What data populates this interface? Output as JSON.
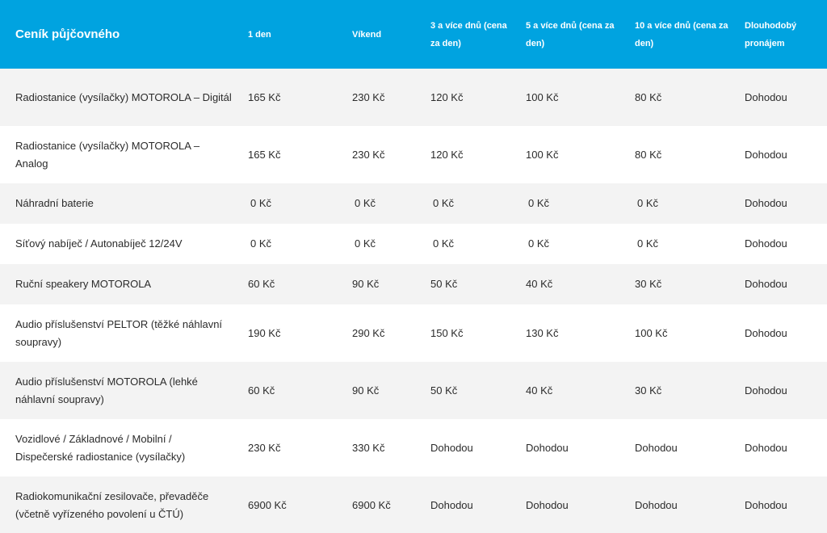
{
  "header": {
    "title": "Ceník půjčovného",
    "columns": [
      "1 den",
      "Víkend",
      "3 a více dnů (cena za den)",
      "5 a více dnů (cena za den)",
      "10 a více dnů (cena za den)",
      "Dlouhodobý pronájem"
    ]
  },
  "rows": [
    {
      "item": "Radiostanice (vysílačky) MOTOROLA – Digitál",
      "prices": [
        "165 Kč",
        "230 Kč",
        "120 Kč",
        "100 Kč",
        "80 Kč",
        "Dohodou"
      ]
    },
    {
      "item": "Radiostanice (vysílačky) MOTOROLA – Analog",
      "prices": [
        "165 Kč",
        "230 Kč",
        "120 Kč",
        "100 Kč",
        "80 Kč",
        "Dohodou"
      ]
    },
    {
      "item": "Náhradní baterie",
      "prices": [
        "0 Kč",
        "0 Kč",
        "0 Kč",
        "0 Kč",
        "0 Kč",
        "Dohodou"
      ]
    },
    {
      "item": "Síťový nabíječ / Autonabíječ 12/24V",
      "prices": [
        "0 Kč",
        "0 Kč",
        "0 Kč",
        "0 Kč",
        "0 Kč",
        "Dohodou"
      ]
    },
    {
      "item": "Ruční speakery MOTOROLA",
      "prices": [
        "60 Kč",
        "90 Kč",
        "50 Kč",
        "40 Kč",
        "30 Kč",
        "Dohodou"
      ]
    },
    {
      "item": "Audio příslušenství PELTOR (těžké náhlavní soupravy)",
      "prices": [
        "190 Kč",
        "290 Kč",
        "150 Kč",
        "130 Kč",
        "100 Kč",
        "Dohodou"
      ]
    },
    {
      "item": "Audio příslušenství MOTOROLA (lehké náhlavní soupravy)",
      "prices": [
        "60 Kč",
        "90 Kč",
        "50 Kč",
        "40 Kč",
        "30 Kč",
        "Dohodou"
      ]
    },
    {
      "item": "Vozidlové / Základnové / Mobilní / Dispečerské radiostanice (vysílačky)",
      "prices": [
        "230 Kč",
        "330 Kč",
        "Dohodou",
        "Dohodou",
        "Dohodou",
        "Dohodou"
      ]
    },
    {
      "item": "Radiokomunikační zesilovače, převaděče (včetně vyřízeného povolení u ČTÚ)",
      "prices": [
        "6900 Kč",
        "6900 Kč",
        "Dohodou",
        "Dohodou",
        "Dohodou",
        "Dohodou"
      ]
    }
  ],
  "colors": {
    "header_bg": "#00a3e0",
    "header_text": "#ffffff",
    "row_alt_bg": "#f3f3f3",
    "row_bg": "#ffffff"
  }
}
